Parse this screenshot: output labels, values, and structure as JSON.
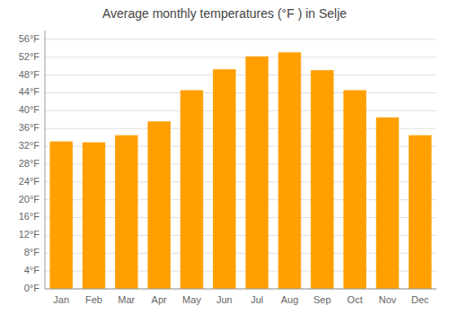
{
  "chart_data": {
    "type": "bar",
    "title": "Average monthly temperatures (°F ) in Selje",
    "categories": [
      "Jan",
      "Feb",
      "Mar",
      "Apr",
      "May",
      "Jun",
      "Jul",
      "Aug",
      "Sep",
      "Oct",
      "Nov",
      "Dec"
    ],
    "values": [
      33.1,
      32.9,
      34.5,
      37.6,
      44.6,
      49.3,
      52.2,
      53.1,
      49.1,
      44.6,
      38.5,
      34.5
    ],
    "color": "#FFA000",
    "ylim": [
      0,
      58
    ],
    "yticks": [
      {
        "value": 0,
        "label": "0°F"
      },
      {
        "value": 4,
        "label": "4°F"
      },
      {
        "value": 8,
        "label": "8°F"
      },
      {
        "value": 12,
        "label": "12°F"
      },
      {
        "value": 16,
        "label": "16°F"
      },
      {
        "value": 20,
        "label": "20°F"
      },
      {
        "value": 24,
        "label": "24°F"
      },
      {
        "value": 28,
        "label": "28°F"
      },
      {
        "value": 32,
        "label": "32°F"
      },
      {
        "value": 36,
        "label": "36°F"
      },
      {
        "value": 40,
        "label": "40°F"
      },
      {
        "value": 44,
        "label": "44°F"
      },
      {
        "value": 48,
        "label": "48°F"
      },
      {
        "value": 52,
        "label": "52°F"
      },
      {
        "value": 56,
        "label": "56°F"
      }
    ],
    "grid": true
  }
}
